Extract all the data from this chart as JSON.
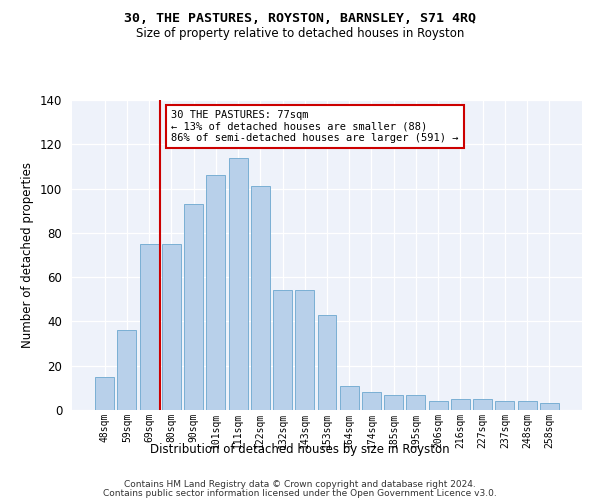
{
  "title1": "30, THE PASTURES, ROYSTON, BARNSLEY, S71 4RQ",
  "title2": "Size of property relative to detached houses in Royston",
  "xlabel": "Distribution of detached houses by size in Royston",
  "ylabel": "Number of detached properties",
  "categories": [
    "48sqm",
    "59sqm",
    "69sqm",
    "80sqm",
    "90sqm",
    "101sqm",
    "111sqm",
    "122sqm",
    "132sqm",
    "143sqm",
    "153sqm",
    "164sqm",
    "174sqm",
    "185sqm",
    "195sqm",
    "206sqm",
    "216sqm",
    "227sqm",
    "237sqm",
    "248sqm",
    "258sqm"
  ],
  "values": [
    15,
    36,
    75,
    75,
    93,
    106,
    114,
    101,
    54,
    54,
    43,
    11,
    8,
    7,
    7,
    4,
    5,
    5,
    4,
    4,
    3
  ],
  "bar_color": "#b8d0ea",
  "bar_edge_color": "#7aafd4",
  "vline_color": "#cc0000",
  "annotation_text": "30 THE PASTURES: 77sqm\n← 13% of detached houses are smaller (88)\n86% of semi-detached houses are larger (591) →",
  "annotation_box_color": "#ffffff",
  "annotation_box_edge": "#cc0000",
  "ylim": [
    0,
    140
  ],
  "yticks": [
    0,
    20,
    40,
    60,
    80,
    100,
    120,
    140
  ],
  "background_color": "#eef2fa",
  "footer1": "Contains HM Land Registry data © Crown copyright and database right 2024.",
  "footer2": "Contains public sector information licensed under the Open Government Licence v3.0."
}
